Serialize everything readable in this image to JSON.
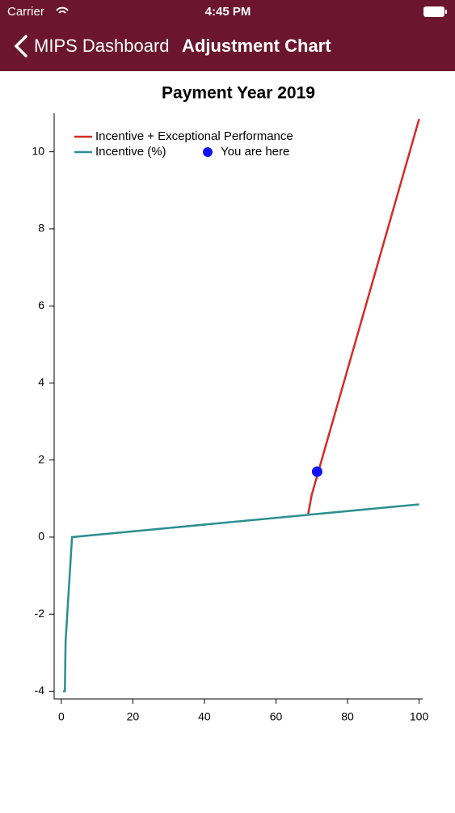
{
  "status_bar": {
    "carrier": "Carrier",
    "time": "4:45 PM"
  },
  "nav_bar": {
    "back_label": "MIPS Dashboard",
    "title": "Adjustment Chart"
  },
  "chart_data": {
    "type": "line",
    "title": "Payment Year 2019",
    "series": [
      {
        "name": "Incentive + Exceptional Performance",
        "color": "#d42a2a",
        "x": [
          69,
          70,
          100
        ],
        "values": [
          0.6,
          1.1,
          10.85
        ]
      },
      {
        "name": "Incentive (%)",
        "color": "#2a8f8f",
        "x": [
          0.5,
          1,
          1.2,
          3,
          100
        ],
        "values": [
          -4,
          -4,
          -2.7,
          0,
          0.85
        ]
      },
      {
        "name": "You are here",
        "type": "scatter",
        "color": "#1010ff",
        "x": [
          71.5
        ],
        "values": [
          1.7
        ]
      }
    ],
    "xlim": [
      -2,
      101
    ],
    "ylim": [
      -4.2,
      11
    ],
    "xticks": [
      0,
      20,
      40,
      60,
      80,
      100
    ],
    "yticks": [
      -4,
      -2,
      0,
      2,
      4,
      6,
      8,
      10
    ]
  }
}
